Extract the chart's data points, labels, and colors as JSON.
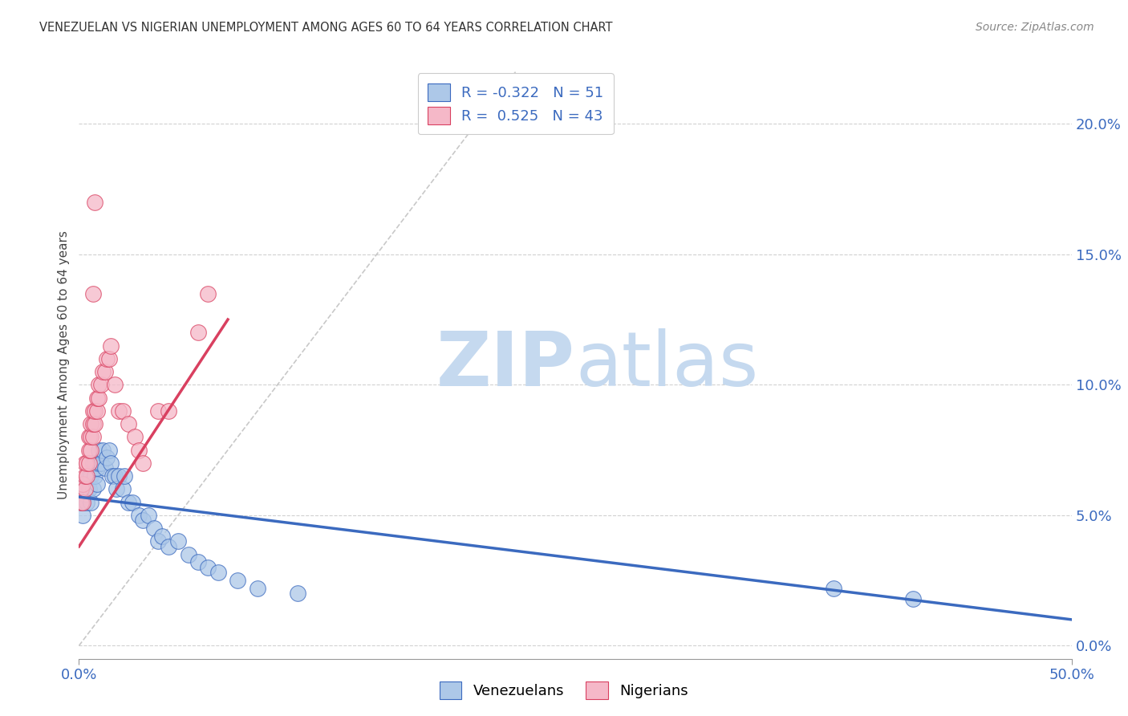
{
  "title": "VENEZUELAN VS NIGERIAN UNEMPLOYMENT AMONG AGES 60 TO 64 YEARS CORRELATION CHART",
  "source": "Source: ZipAtlas.com",
  "ylabel": "Unemployment Among Ages 60 to 64 years",
  "xmin": 0.0,
  "xmax": 0.5,
  "ymin": -0.005,
  "ymax": 0.22,
  "venezuelan_R": -0.322,
  "venezuelan_N": 51,
  "nigerian_R": 0.525,
  "nigerian_N": 43,
  "venezuelan_color": "#adc8e8",
  "nigerian_color": "#f5b8c8",
  "venezuelan_line_color": "#3b6abf",
  "nigerian_line_color": "#d94060",
  "watermark_zip_color": "#c5d9ef",
  "watermark_atlas_color": "#c5d9ef",
  "background_color": "#ffffff",
  "venezuelan_x": [
    0.001,
    0.001,
    0.002,
    0.002,
    0.003,
    0.003,
    0.004,
    0.004,
    0.005,
    0.005,
    0.006,
    0.006,
    0.007,
    0.007,
    0.008,
    0.008,
    0.009,
    0.009,
    0.01,
    0.01,
    0.011,
    0.012,
    0.013,
    0.014,
    0.015,
    0.016,
    0.017,
    0.018,
    0.019,
    0.02,
    0.022,
    0.023,
    0.025,
    0.027,
    0.03,
    0.032,
    0.035,
    0.038,
    0.04,
    0.042,
    0.045,
    0.05,
    0.055,
    0.06,
    0.065,
    0.07,
    0.08,
    0.09,
    0.11,
    0.38,
    0.42
  ],
  "venezuelan_y": [
    0.055,
    0.06,
    0.05,
    0.055,
    0.058,
    0.062,
    0.055,
    0.06,
    0.06,
    0.065,
    0.055,
    0.065,
    0.06,
    0.07,
    0.065,
    0.07,
    0.062,
    0.068,
    0.07,
    0.075,
    0.07,
    0.075,
    0.068,
    0.072,
    0.075,
    0.07,
    0.065,
    0.065,
    0.06,
    0.065,
    0.06,
    0.065,
    0.055,
    0.055,
    0.05,
    0.048,
    0.05,
    0.045,
    0.04,
    0.042,
    0.038,
    0.04,
    0.035,
    0.032,
    0.03,
    0.028,
    0.025,
    0.022,
    0.02,
    0.022,
    0.018
  ],
  "nigerian_x": [
    0.001,
    0.001,
    0.002,
    0.002,
    0.003,
    0.003,
    0.003,
    0.004,
    0.004,
    0.005,
    0.005,
    0.005,
    0.006,
    0.006,
    0.006,
    0.007,
    0.007,
    0.007,
    0.008,
    0.008,
    0.009,
    0.009,
    0.01,
    0.01,
    0.011,
    0.012,
    0.013,
    0.014,
    0.015,
    0.016,
    0.018,
    0.02,
    0.022,
    0.025,
    0.028,
    0.03,
    0.032,
    0.04,
    0.045,
    0.06,
    0.065,
    0.008,
    0.007
  ],
  "nigerian_y": [
    0.055,
    0.06,
    0.055,
    0.062,
    0.06,
    0.065,
    0.07,
    0.065,
    0.07,
    0.07,
    0.075,
    0.08,
    0.075,
    0.08,
    0.085,
    0.08,
    0.085,
    0.09,
    0.085,
    0.09,
    0.09,
    0.095,
    0.095,
    0.1,
    0.1,
    0.105,
    0.105,
    0.11,
    0.11,
    0.115,
    0.1,
    0.09,
    0.09,
    0.085,
    0.08,
    0.075,
    0.07,
    0.09,
    0.09,
    0.12,
    0.135,
    0.17,
    0.135
  ],
  "nigerian_line_x0": 0.0,
  "nigerian_line_x1": 0.075,
  "nigerian_line_y0": 0.038,
  "nigerian_line_y1": 0.125,
  "venezuelan_line_x0": 0.0,
  "venezuelan_line_x1": 0.5,
  "venezuelan_line_y0": 0.057,
  "venezuelan_line_y1": 0.01
}
